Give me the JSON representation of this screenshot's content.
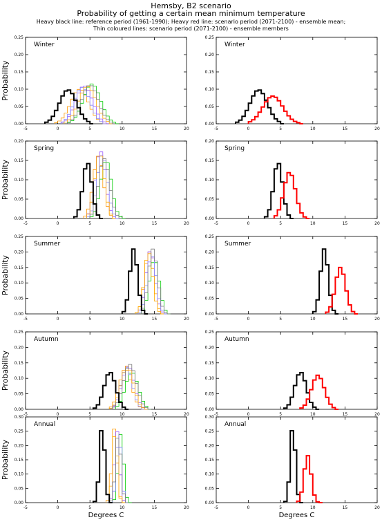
{
  "header": {
    "title": "Hemsby, B2 scenario",
    "subtitle": "Probability of getting a certain mean minimum temperature",
    "legend_line1": "Heavy black line: reference period (1961-1990); Heavy red line: scenario period (2071-2100) - ensemble mean;",
    "legend_line2": "Thin coloured lines: scenario period (2071-2100) - ensemble members"
  },
  "axes": {
    "xlabel": "Degrees C",
    "ylabel": "Probability",
    "xlim": [
      -5,
      20
    ],
    "xticks": [
      "-5",
      "0",
      "5",
      "10",
      "15",
      "20"
    ]
  },
  "colors": {
    "reference": "#000000",
    "ensemble_mean": "#ff0000",
    "members": [
      "#ff9900",
      "#00cc00",
      "#9955ff",
      "#8888ff",
      "#ffaa00",
      "#777777"
    ]
  },
  "chart_data": [
    {
      "type": "line",
      "season": "Winter",
      "panel": "ensemble members",
      "ylim": [
        0,
        0.25
      ],
      "yticks": [
        "0.00",
        "0.05",
        "0.10",
        "0.15",
        "0.20",
        "0.25"
      ],
      "reference": {
        "mean": 1.6,
        "sd": 1.35,
        "peak": 0.098
      },
      "ensemble_mean": null,
      "members": [
        {
          "mean": 3.4,
          "sd": 1.4,
          "peak": 0.1
        },
        {
          "mean": 5.3,
          "sd": 1.35,
          "peak": 0.115
        },
        {
          "mean": 4.1,
          "sd": 1.3,
          "peak": 0.11
        },
        {
          "mean": 3.8,
          "sd": 1.25,
          "peak": 0.105
        },
        {
          "mean": 4.6,
          "sd": 1.35,
          "peak": 0.108
        },
        {
          "mean": 5,
          "sd": 1.3,
          "peak": 0.112
        }
      ]
    },
    {
      "type": "line",
      "season": "Winter",
      "panel": "ensemble mean",
      "ylim": [
        0,
        0.25
      ],
      "yticks": [
        "0.00",
        "0.05",
        "0.10",
        "0.15",
        "0.20",
        "0.25"
      ],
      "reference": {
        "mean": 1.6,
        "sd": 1.35,
        "peak": 0.098
      },
      "ensemble_mean": {
        "mean": 3.8,
        "sd": 1.55,
        "peak": 0.08
      },
      "members": []
    },
    {
      "type": "line",
      "season": "Spring",
      "panel": "ensemble members",
      "ylim": [
        0,
        0.2
      ],
      "yticks": [
        "0.00",
        "0.05",
        "0.10",
        "0.15",
        "0.20"
      ],
      "reference": {
        "mean": 4.6,
        "sd": 0.7,
        "peak": 0.145
      },
      "ensemble_mean": null,
      "members": [
        {
          "mean": 6.3,
          "sd": 0.8,
          "peak": 0.16
        },
        {
          "mean": 7.5,
          "sd": 0.85,
          "peak": 0.15
        },
        {
          "mean": 6.6,
          "sd": 0.8,
          "peak": 0.175
        },
        {
          "mean": 6.9,
          "sd": 0.8,
          "peak": 0.165
        },
        {
          "mean": 6.5,
          "sd": 0.75,
          "peak": 0.17
        },
        {
          "mean": 7.2,
          "sd": 0.85,
          "peak": 0.155
        }
      ]
    },
    {
      "type": "line",
      "season": "Spring",
      "panel": "ensemble mean",
      "ylim": [
        0,
        0.2
      ],
      "yticks": [
        "0.00",
        "0.05",
        "0.10",
        "0.15",
        "0.20"
      ],
      "reference": {
        "mean": 4.6,
        "sd": 0.7,
        "peak": 0.145
      },
      "ensemble_mean": {
        "mean": 6.4,
        "sd": 0.9,
        "peak": 0.12
      },
      "members": []
    },
    {
      "type": "line",
      "season": "Summer",
      "panel": "ensemble members",
      "ylim": [
        0,
        0.25
      ],
      "yticks": [
        "0.00",
        "0.05",
        "0.10",
        "0.15",
        "0.20",
        "0.25"
      ],
      "reference": {
        "mean": 11.8,
        "sd": 0.6,
        "peak": 0.21
      },
      "ensemble_mean": null,
      "members": [
        {
          "mean": 14.2,
          "sd": 0.7,
          "peak": 0.2
        },
        {
          "mean": 15,
          "sd": 0.75,
          "peak": 0.175
        },
        {
          "mean": 14.4,
          "sd": 0.7,
          "peak": 0.205
        },
        {
          "mean": 14.6,
          "sd": 0.7,
          "peak": 0.19
        },
        {
          "mean": 14.1,
          "sd": 0.65,
          "peak": 0.2
        },
        {
          "mean": 14.8,
          "sd": 0.7,
          "peak": 0.21
        }
      ]
    },
    {
      "type": "line",
      "season": "Summer",
      "panel": "ensemble mean",
      "ylim": [
        0,
        0.25
      ],
      "yticks": [
        "0.00",
        "0.05",
        "0.10",
        "0.15",
        "0.20",
        "0.25"
      ],
      "reference": {
        "mean": 11.8,
        "sd": 0.6,
        "peak": 0.21
      },
      "ensemble_mean": {
        "mean": 14.3,
        "sd": 0.8,
        "peak": 0.15
      },
      "members": []
    },
    {
      "type": "line",
      "season": "Autumn",
      "panel": "ensemble members",
      "ylim": [
        0,
        0.25
      ],
      "yticks": [
        "0.00",
        "0.05",
        "0.10",
        "0.15",
        "0.20",
        "0.25"
      ],
      "reference": {
        "mean": 8.1,
        "sd": 0.9,
        "peak": 0.12
      },
      "ensemble_mean": null,
      "members": [
        {
          "mean": 10.5,
          "sd": 0.95,
          "peak": 0.13
        },
        {
          "mean": 11.5,
          "sd": 1,
          "peak": 0.12
        },
        {
          "mean": 10.9,
          "sd": 0.95,
          "peak": 0.14
        },
        {
          "mean": 10.7,
          "sd": 0.9,
          "peak": 0.135
        },
        {
          "mean": 10.8,
          "sd": 0.95,
          "peak": 0.14
        },
        {
          "mean": 11.2,
          "sd": 1,
          "peak": 0.145
        }
      ]
    },
    {
      "type": "line",
      "season": "Autumn",
      "panel": "ensemble mean",
      "ylim": [
        0,
        0.25
      ],
      "yticks": [
        "0.00",
        "0.05",
        "0.10",
        "0.15",
        "0.20",
        "0.25"
      ],
      "reference": {
        "mean": 8.1,
        "sd": 0.9,
        "peak": 0.12
      },
      "ensemble_mean": {
        "mean": 10.8,
        "sd": 1,
        "peak": 0.11
      },
      "members": []
    },
    {
      "type": "line",
      "season": "Annual",
      "panel": "ensemble members",
      "ylim": [
        0,
        0.3
      ],
      "yticks": [
        "0.00",
        "0.05",
        "0.10",
        "0.15",
        "0.20",
        "0.25",
        "0.30"
      ],
      "reference": {
        "mean": 6.9,
        "sd": 0.4,
        "peak": 0.27
      },
      "ensemble_mean": null,
      "members": [
        {
          "mean": 8.8,
          "sd": 0.4,
          "peak": 0.26
        },
        {
          "mean": 9.8,
          "sd": 0.42,
          "peak": 0.24
        },
        {
          "mean": 9.2,
          "sd": 0.4,
          "peak": 0.25
        },
        {
          "mean": 9.5,
          "sd": 0.4,
          "peak": 0.235
        },
        {
          "mean": 8.9,
          "sd": 0.38,
          "peak": 0.25
        },
        {
          "mean": 9.4,
          "sd": 0.42,
          "peak": 0.24
        }
      ]
    },
    {
      "type": "line",
      "season": "Annual",
      "panel": "ensemble mean",
      "ylim": [
        0,
        0.3
      ],
      "yticks": [
        "0.00",
        "0.05",
        "0.10",
        "0.15",
        "0.20",
        "0.25",
        "0.30"
      ],
      "reference": {
        "mean": 6.9,
        "sd": 0.4,
        "peak": 0.27
      },
      "ensemble_mean": {
        "mean": 9.2,
        "sd": 0.55,
        "peak": 0.165
      },
      "members": []
    }
  ]
}
